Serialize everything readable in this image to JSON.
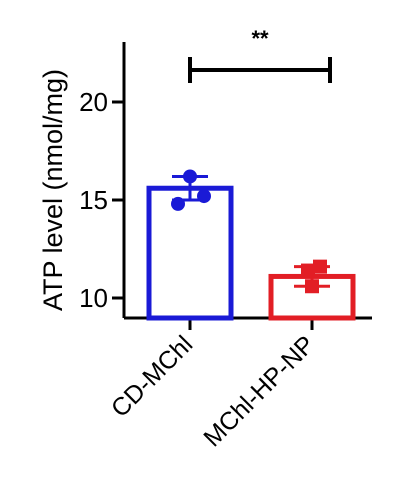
{
  "chart_data": {
    "type": "bar",
    "ylabel": "ATP level (nmol/mg)",
    "ylim": [
      8,
      22
    ],
    "yticks": [
      10,
      15,
      20
    ],
    "categories": [
      "CD-MChl",
      "MChl-HP-NP"
    ],
    "bars": [
      {
        "category": "CD-MChl",
        "value": 15.6,
        "error": 0.6,
        "points": [
          16.2,
          15.2,
          14.8
        ],
        "color": "#1a1ad6"
      },
      {
        "category": "MChl-HP-NP",
        "value": 11.1,
        "error": 0.5,
        "points": [
          11.6,
          11.4,
          10.6
        ],
        "color": "#e21e25"
      }
    ],
    "significance": {
      "label": "**",
      "between": [
        "CD-MChl",
        "MChl-HP-NP"
      ],
      "y": 21
    }
  }
}
